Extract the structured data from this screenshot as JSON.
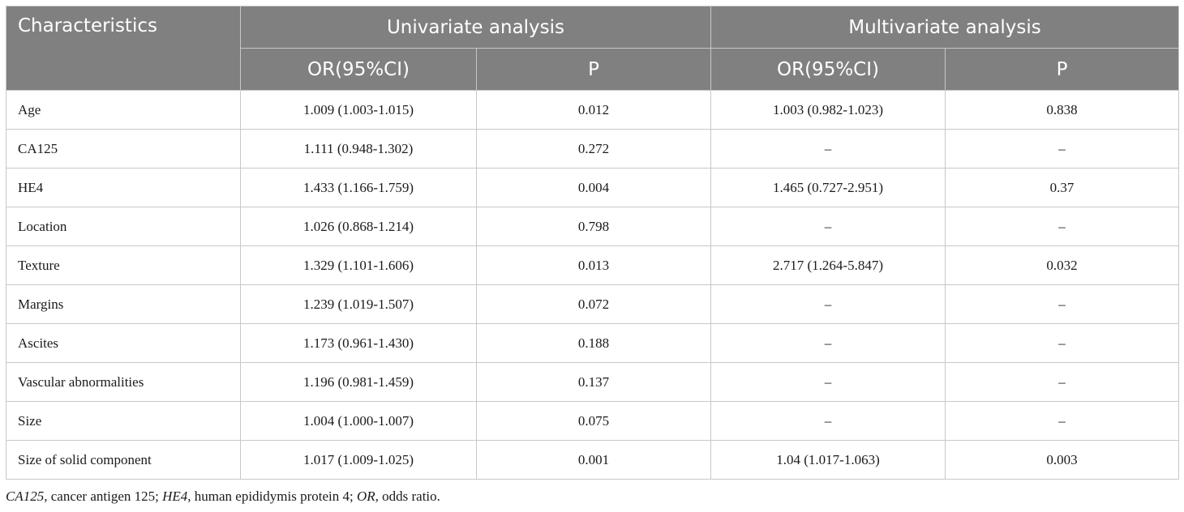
{
  "table": {
    "headers": {
      "characteristics": "Characteristics",
      "univariate": "Univariate analysis",
      "multivariate": "Multivariate analysis",
      "or_ci_uni": "OR(95%CI)",
      "p_uni": "P",
      "or_ci_multi": "OR(95%CI)",
      "p_multi": "P"
    },
    "rows": [
      {
        "label": "Age",
        "uni_or": "1.009 (1.003-1.015)",
        "uni_p": "0.012",
        "multi_or": "1.003 (0.982-1.023)",
        "multi_p": "0.838"
      },
      {
        "label": "CA125",
        "uni_or": "1.111 (0.948-1.302)",
        "uni_p": "0.272",
        "multi_or": "–",
        "multi_p": "–"
      },
      {
        "label": "HE4",
        "uni_or": "1.433 (1.166-1.759)",
        "uni_p": "0.004",
        "multi_or": "1.465 (0.727-2.951)",
        "multi_p": "0.37"
      },
      {
        "label": "Location",
        "uni_or": "1.026 (0.868-1.214)",
        "uni_p": "0.798",
        "multi_or": "–",
        "multi_p": "–"
      },
      {
        "label": "Texture",
        "uni_or": "1.329 (1.101-1.606)",
        "uni_p": "0.013",
        "multi_or": "2.717 (1.264-5.847)",
        "multi_p": "0.032"
      },
      {
        "label": "Margins",
        "uni_or": "1.239 (1.019-1.507)",
        "uni_p": "0.072",
        "multi_or": "–",
        "multi_p": "–"
      },
      {
        "label": "Ascites",
        "uni_or": "1.173 (0.961-1.430)",
        "uni_p": "0.188",
        "multi_or": "–",
        "multi_p": "–"
      },
      {
        "label": "Vascular abnormalities",
        "uni_or": "1.196 (0.981-1.459)",
        "uni_p": "0.137",
        "multi_or": "–",
        "multi_p": "–"
      },
      {
        "label": "Size",
        "uni_or": "1.004 (1.000-1.007)",
        "uni_p": "0.075",
        "multi_or": "–",
        "multi_p": "–"
      },
      {
        "label": "Size of solid component",
        "uni_or": "1.017 (1.009-1.025)",
        "uni_p": "0.001",
        "multi_or": "1.04 (1.017-1.063)",
        "multi_p": "0.003"
      }
    ]
  },
  "footnote": {
    "abbr1": "CA125",
    "def1": ", cancer antigen 125; ",
    "abbr2": "HE4",
    "def2": ", human epididymis protein 4; ",
    "abbr3": "OR",
    "def3": ", odds ratio."
  },
  "colors": {
    "header_bg": "#808080",
    "header_text": "#ffffff",
    "grid": "#c8c8c8"
  }
}
